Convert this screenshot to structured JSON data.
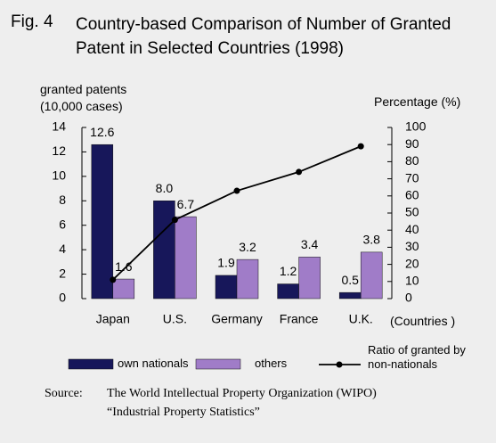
{
  "figure_label": "Fig. 4",
  "chart_data": {
    "type": "bar",
    "title": "Country-based Comparison of Number of Granted Patent in Selected Countries (1998)",
    "ylabel": [
      "granted patents",
      "(10,000 cases)"
    ],
    "y2label": "Percentage (%)",
    "xlabel": "(Countries )",
    "categories": [
      "Japan",
      "U.S.",
      "Germany",
      "France",
      "U.K."
    ],
    "series": [
      {
        "name": "own nationals",
        "color": "#17175a",
        "values": [
          12.6,
          8.0,
          1.9,
          1.2,
          0.5
        ],
        "value_labels": [
          "12.6",
          "8.0",
          "1.9",
          "1.2",
          "0.5"
        ]
      },
      {
        "name": "others",
        "color": "#a07cc8",
        "values": [
          1.6,
          6.7,
          3.2,
          3.4,
          3.8
        ],
        "value_labels": [
          "1.6",
          "6.7",
          "3.2",
          "3.4",
          "3.8"
        ]
      },
      {
        "name": "Ratio of granted by non-nationals",
        "type": "line",
        "axis": "y2",
        "color": "#000000",
        "values": [
          11,
          46,
          63,
          74,
          89
        ]
      }
    ],
    "ylim": [
      0,
      14
    ],
    "yticks": [
      0,
      2,
      4,
      6,
      8,
      10,
      12,
      14
    ],
    "y2lim": [
      0,
      100
    ],
    "y2ticks": [
      0,
      10,
      20,
      30,
      40,
      50,
      60,
      70,
      80,
      90,
      100
    ],
    "grid": false
  },
  "source": {
    "label": "Source:",
    "lines": [
      "The World Intellectual Property Organization (WIPO)",
      "“Industrial Property Statistics”"
    ]
  }
}
